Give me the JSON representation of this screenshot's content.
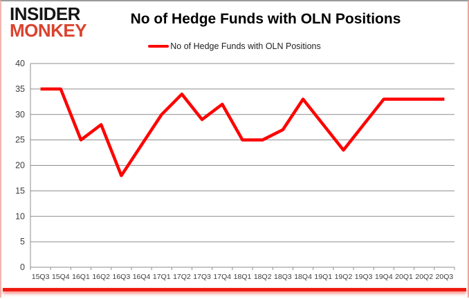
{
  "logo": {
    "line1": "INSIDER",
    "line2": "MONKEY"
  },
  "header": {
    "title": "No of Hedge Funds with OLN Positions"
  },
  "legend": {
    "label": "No of Hedge Funds with OLN Positions"
  },
  "chart_data": {
    "type": "line",
    "title": "No of Hedge Funds with OLN Positions",
    "categories": [
      "15Q3",
      "15Q4",
      "16Q1",
      "16Q2",
      "16Q3",
      "16Q4",
      "17Q1",
      "17Q2",
      "17Q3",
      "17Q4",
      "18Q1",
      "18Q2",
      "18Q3",
      "18Q4",
      "19Q1",
      "19Q2",
      "19Q3",
      "19Q4",
      "20Q1",
      "20Q2",
      "20Q3"
    ],
    "series": [
      {
        "name": "No of Hedge Funds with OLN Positions",
        "color": "#fe0000",
        "values": [
          35,
          35,
          25,
          28,
          18,
          24,
          30,
          34,
          29,
          32,
          25,
          25,
          27,
          33,
          28,
          23,
          28,
          33,
          33,
          33,
          33
        ]
      }
    ],
    "xlabel": "",
    "ylabel": "",
    "ylim": [
      0,
      40
    ],
    "yticks": [
      0,
      5,
      10,
      15,
      20,
      25,
      30,
      35,
      40
    ],
    "grid": "horizontal",
    "legend_position": "top-center"
  },
  "colors": {
    "line": "#fe0000",
    "grid": "#8c8c8c",
    "axis": "#8c8c8c",
    "tick_label": "#3d3d3d",
    "logo_black": "#141414",
    "logo_red": "#d9432f",
    "bottom_bar": "#ee1b10"
  }
}
